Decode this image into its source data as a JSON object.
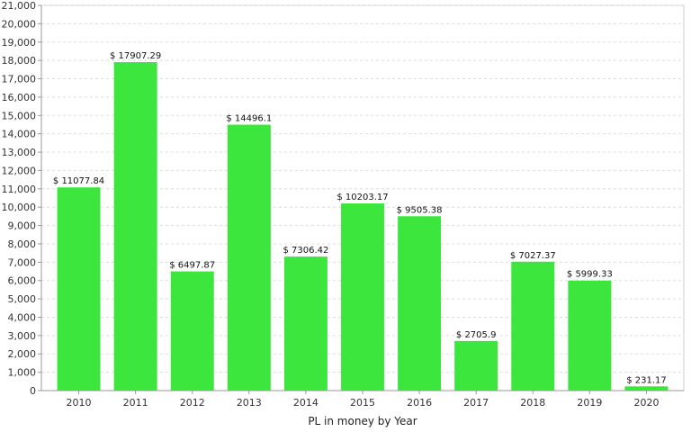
{
  "chart_data": {
    "type": "bar",
    "title": "",
    "xlabel": "PL in money by Year",
    "ylabel": "",
    "categories": [
      "2010",
      "2011",
      "2012",
      "2013",
      "2014",
      "2015",
      "2016",
      "2017",
      "2018",
      "2019",
      "2020"
    ],
    "values": [
      11077.84,
      17907.29,
      6497.87,
      14496.1,
      7306.42,
      10203.17,
      9505.38,
      2705.9,
      7027.37,
      5999.33,
      231.17
    ],
    "data_labels": [
      "$ 11077.84",
      "$ 17907.29",
      "$ 6497.87",
      "$ 14496.1",
      "$ 7306.42",
      "$ 10203.17",
      "$ 9505.38",
      "$ 2705.9",
      "$ 7027.37",
      "$ 5999.33",
      "$ 231.17"
    ],
    "ylim": [
      0,
      21000
    ],
    "yticks": [
      0,
      1000,
      2000,
      3000,
      4000,
      5000,
      6000,
      7000,
      8000,
      9000,
      10000,
      11000,
      12000,
      13000,
      14000,
      15000,
      16000,
      17000,
      18000,
      19000,
      20000,
      21000
    ],
    "ytick_labels": [
      "0",
      "1,000",
      "2,000",
      "3,000",
      "4,000",
      "5,000",
      "6,000",
      "7,000",
      "8,000",
      "9,000",
      "10,000",
      "11,000",
      "12,000",
      "13,000",
      "14,000",
      "15,000",
      "16,000",
      "17,000",
      "18,000",
      "19,000",
      "20,000",
      "21,000"
    ],
    "grid": true,
    "bar_color": "#3de63d"
  }
}
